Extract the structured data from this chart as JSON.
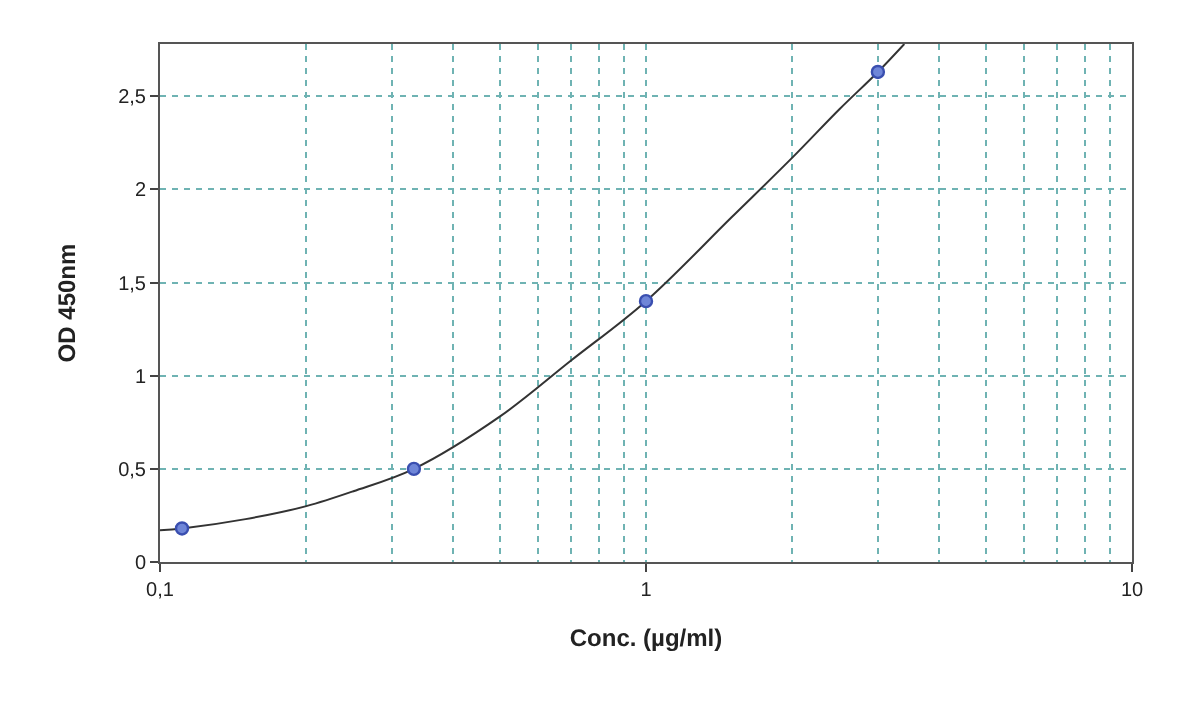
{
  "chart_data": {
    "type": "scatter",
    "xlabel": "Conc. (µg/ml)",
    "ylabel": "OD 450nm",
    "log": "x",
    "grid": true,
    "xlim": [
      0.1,
      10
    ],
    "xticks": [
      {
        "value": 0.1,
        "label": "0,1"
      },
      1,
      10
    ],
    "ylim": [
      0,
      2.78
    ],
    "yticks": [
      0,
      {
        "value": 0.5,
        "label": "0,5"
      },
      1,
      {
        "value": 1.5,
        "label": "1,5"
      },
      2,
      {
        "value": 2.5,
        "label": "2,5"
      }
    ],
    "series": [
      {
        "type": "line",
        "color": "#333333",
        "marker": "none",
        "x": [
          0.1,
          0.111,
          0.15,
          0.2,
          0.25,
          0.333,
          0.5,
          0.7,
          1,
          1.5,
          2,
          2.5,
          3,
          3.4
        ],
        "values": [
          0.17,
          0.18,
          0.23,
          0.3,
          0.38,
          0.5,
          0.78,
          1.08,
          1.4,
          1.85,
          2.17,
          2.43,
          2.63,
          2.78
        ]
      },
      {
        "color": "#3a4fb0",
        "marker": "circle",
        "x": [
          0.111,
          0.333,
          1,
          3
        ],
        "values": [
          0.18,
          0.5,
          1.4,
          2.63
        ]
      }
    ]
  }
}
